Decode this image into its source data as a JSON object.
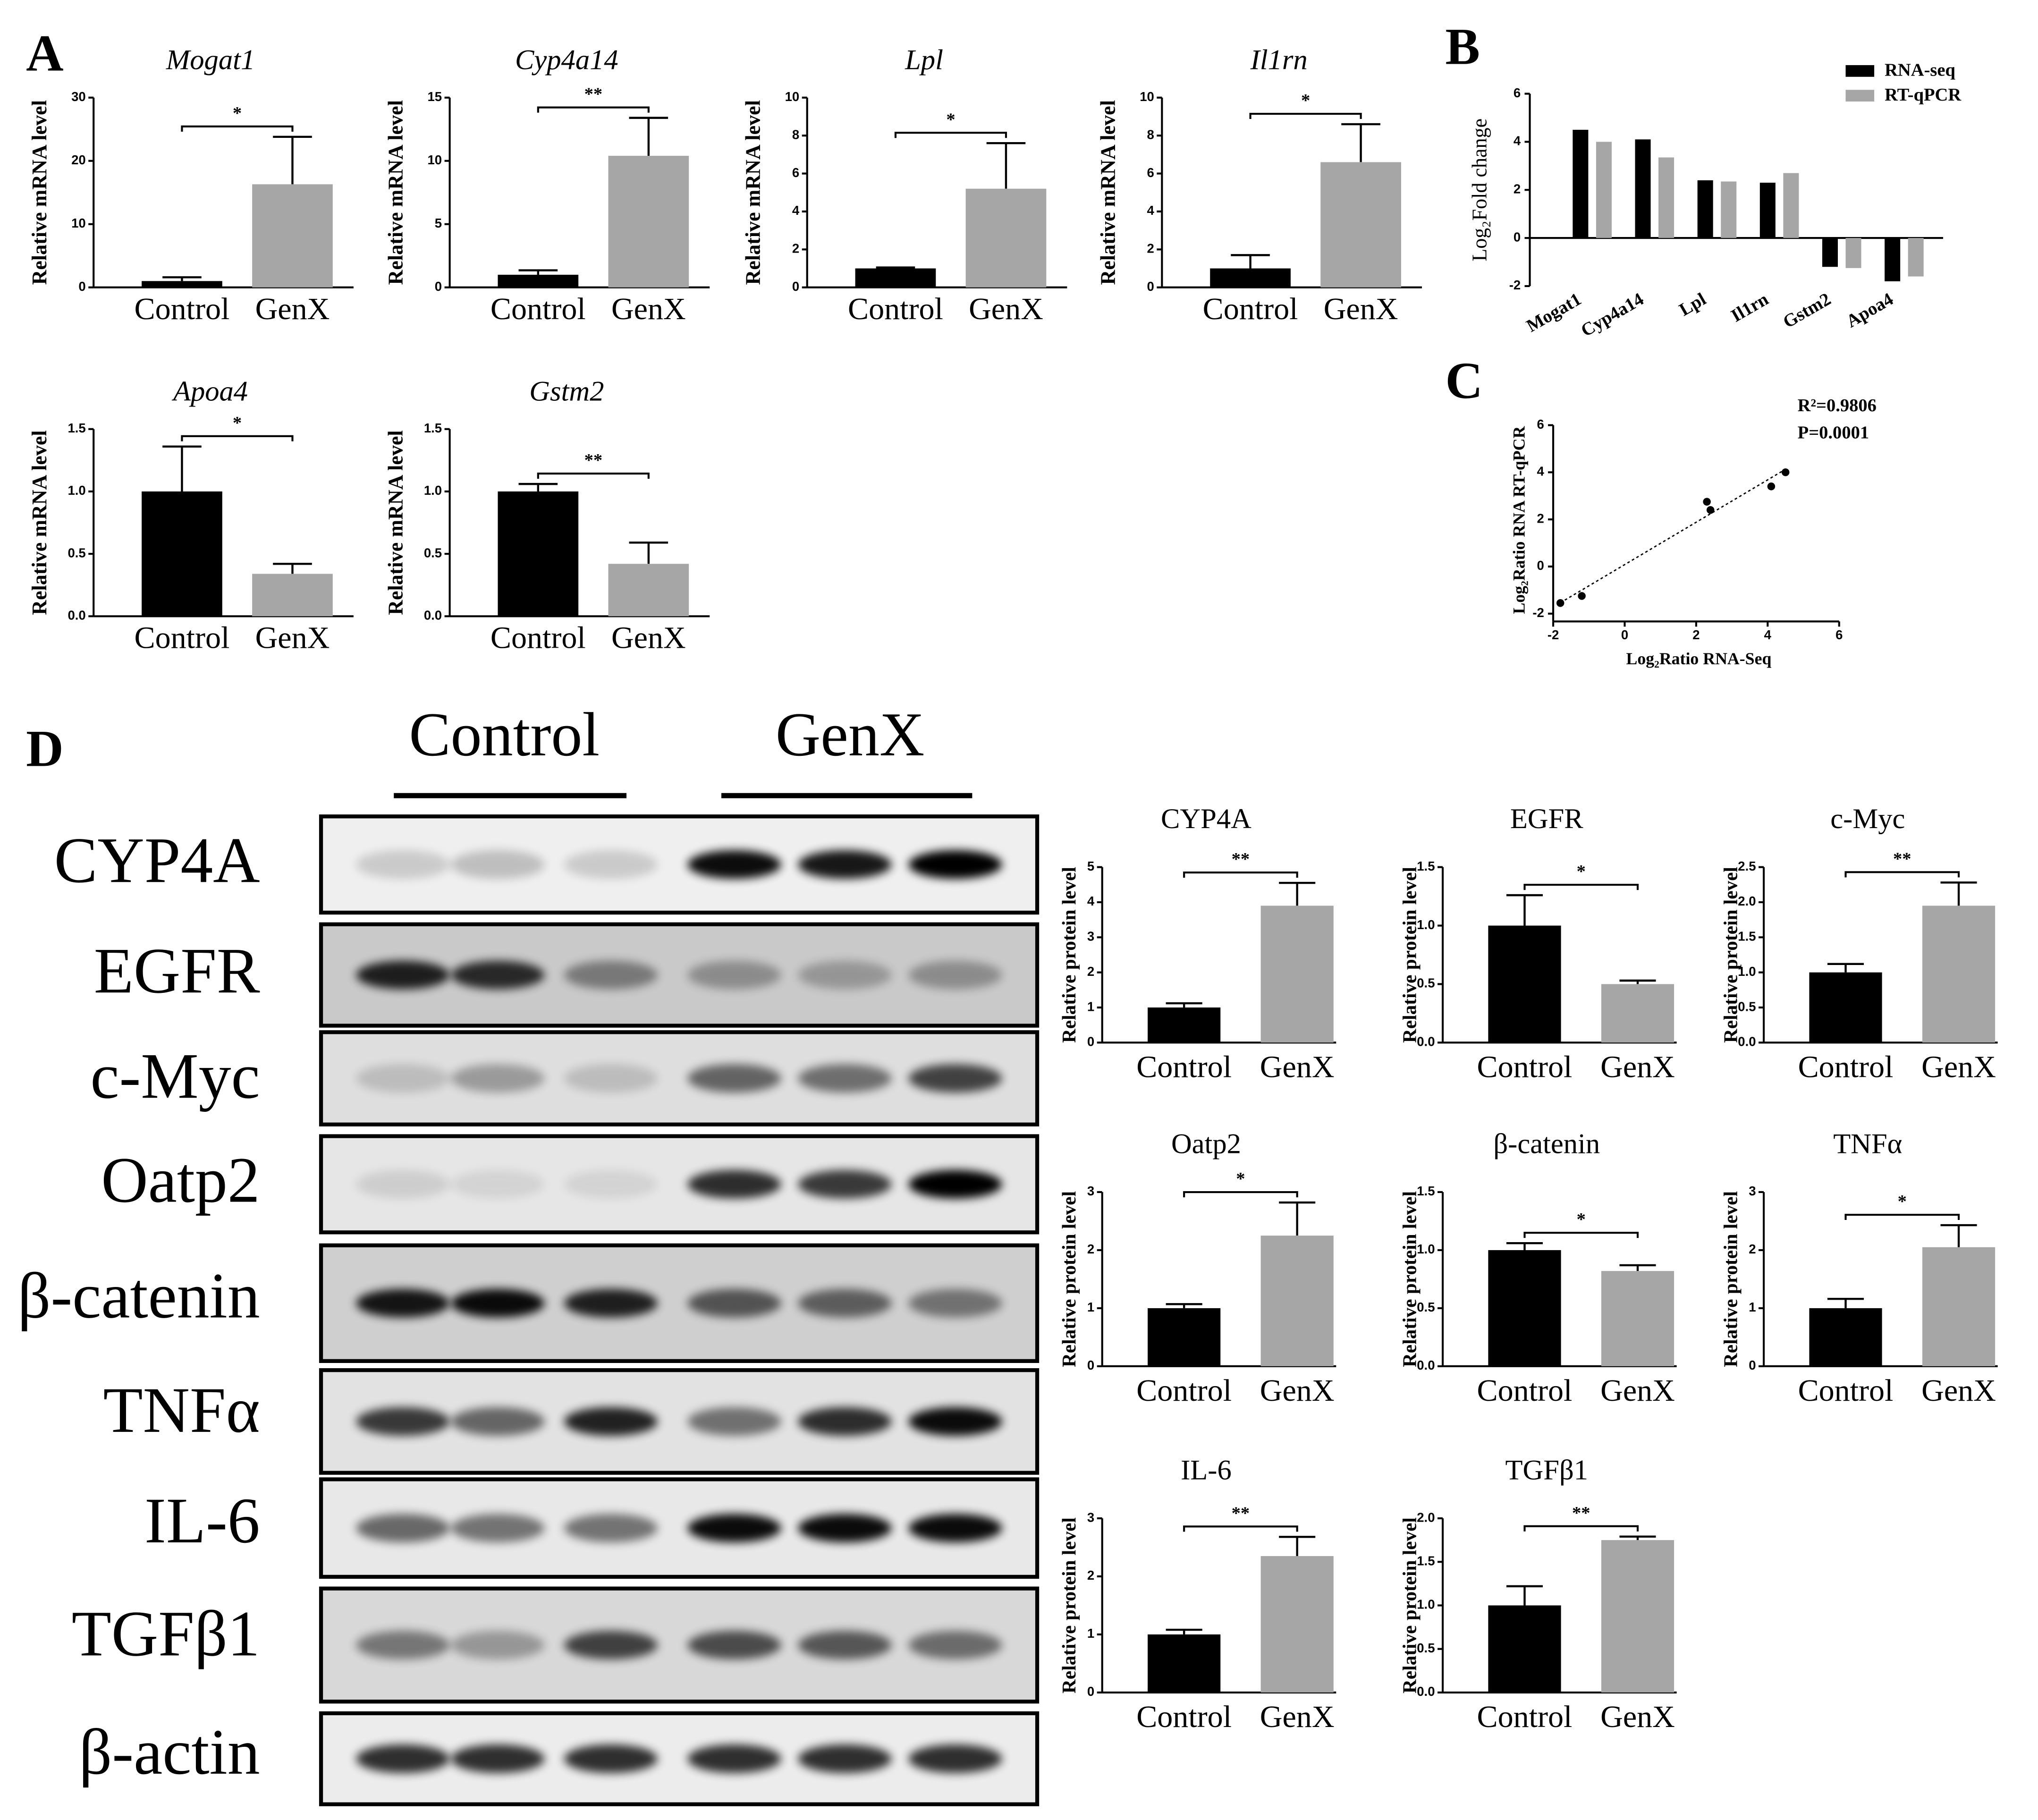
{
  "panels": [
    "A",
    "B",
    "C",
    "D"
  ],
  "blot": {
    "groups": [
      "Control",
      "GenX"
    ],
    "proteins": [
      "CYP4A",
      "EGFR",
      "c-Myc",
      "Oatp2",
      "β-catenin",
      "TNFα",
      "IL-6",
      "TGFβ1",
      "β-actin"
    ]
  },
  "chart_data": [
    {
      "type": "bar",
      "title": "Mogat1",
      "y_label": "Relative mRNA level",
      "categories": [
        "Control",
        "GenX"
      ],
      "values": [
        1,
        16.3
      ],
      "errors": [
        0.6,
        7.5
      ],
      "colors": [
        "#000000",
        "#a6a6a6"
      ],
      "ylim": [
        0,
        30
      ],
      "yticks": [
        0,
        10,
        20,
        30
      ],
      "significance": "*"
    },
    {
      "type": "bar",
      "title": "Cyp4a14",
      "y_label": "Relative mRNA level",
      "categories": [
        "Control",
        "GenX"
      ],
      "values": [
        1,
        10.4
      ],
      "errors": [
        0.35,
        3
      ],
      "colors": [
        "#000000",
        "#a6a6a6"
      ],
      "ylim": [
        0,
        15
      ],
      "yticks": [
        0,
        5,
        10,
        15
      ],
      "significance": "**"
    },
    {
      "type": "bar",
      "title": "Lpl",
      "y_label": "Relative mRNA level",
      "categories": [
        "Control",
        "GenX"
      ],
      "values": [
        1,
        5.2
      ],
      "errors": [
        0.05,
        2.4
      ],
      "colors": [
        "#000000",
        "#a6a6a6"
      ],
      "ylim": [
        0,
        10
      ],
      "yticks": [
        0,
        2,
        4,
        6,
        8,
        10
      ],
      "significance": "*"
    },
    {
      "type": "bar",
      "title": "Il1rn",
      "y_label": "Relative mRNA level",
      "categories": [
        "Control",
        "GenX"
      ],
      "values": [
        1,
        6.6
      ],
      "errors": [
        0.7,
        2
      ],
      "colors": [
        "#000000",
        "#a6a6a6"
      ],
      "ylim": [
        0,
        10
      ],
      "yticks": [
        0,
        2,
        4,
        6,
        8,
        10
      ],
      "significance": "*"
    },
    {
      "type": "bar",
      "title": "Apoa4",
      "y_label": "Relative mRNA level",
      "categories": [
        "Control",
        "GenX"
      ],
      "values": [
        1.0,
        0.34
      ],
      "errors": [
        0.36,
        0.08
      ],
      "colors": [
        "#000000",
        "#a6a6a6"
      ],
      "ylim": [
        0,
        1.5
      ],
      "yticks": [
        {
          "value": 0,
          "label": "0.0"
        },
        {
          "value": 0.5,
          "label": "0.5"
        },
        {
          "value": 1,
          "label": "1.0"
        },
        {
          "value": 1.5,
          "label": "1.5"
        }
      ],
      "significance": "*"
    },
    {
      "type": "bar",
      "title": "Gstm2",
      "y_label": "Relative mRNA level",
      "categories": [
        "Control",
        "GenX"
      ],
      "values": [
        1.0,
        0.42
      ],
      "errors": [
        0.06,
        0.17
      ],
      "colors": [
        "#000000",
        "#a6a6a6"
      ],
      "ylim": [
        0,
        1.5
      ],
      "yticks": [
        {
          "value": 0,
          "label": "0.0"
        },
        {
          "value": 0.5,
          "label": "0.5"
        },
        {
          "value": 1,
          "label": "1.0"
        },
        {
          "value": 1.5,
          "label": "1.5"
        }
      ],
      "significance": "**"
    },
    {
      "type": "grouped_bar",
      "y_label": "Log₂Fold change",
      "categories": [
        "Mogat1",
        "Cyp4a14",
        "Lpl",
        "Il1rn",
        "Gstm2",
        "Apoa4"
      ],
      "series": [
        {
          "name": "RNA-seq",
          "color": "#000000",
          "values": [
            4.5,
            4.1,
            2.4,
            2.3,
            -1.2,
            -1.8
          ]
        },
        {
          "name": "RT-qPCR",
          "color": "#a6a6a6",
          "values": [
            4.0,
            3.35,
            2.35,
            2.7,
            -1.25,
            -1.6
          ]
        }
      ],
      "ylim": [
        -2,
        6
      ],
      "yticks": [
        -2,
        0,
        2,
        4,
        6
      ],
      "legend": "upper right"
    },
    {
      "type": "scatter",
      "x_label": "Log₂Ratio RNA-Seq",
      "y_label": "Log₂Ratio RNA RT-qPCR",
      "x": [
        4.5,
        4.1,
        2.4,
        2.3,
        -1.2,
        -1.8
      ],
      "y": [
        4.0,
        3.4,
        2.4,
        2.75,
        -1.25,
        -1.55
      ],
      "color": "#000000",
      "xlim": [
        -2,
        6
      ],
      "xticks": [
        -2,
        0,
        2,
        4,
        6
      ],
      "ylim": [
        -2,
        6
      ],
      "yticks": [
        -2,
        0,
        2,
        4,
        6
      ],
      "annotations": [
        "R²=0.9806",
        "P=0.0001"
      ],
      "trendline": true
    },
    {
      "type": "bar",
      "title": "CYP4A",
      "y_label": "Relative protein level",
      "categories": [
        "Control",
        "GenX"
      ],
      "values": [
        1.0,
        3.9
      ],
      "errors": [
        0.12,
        0.65
      ],
      "colors": [
        "#000000",
        "#a6a6a6"
      ],
      "ylim": [
        0,
        5
      ],
      "yticks": [
        0,
        1,
        2,
        3,
        4,
        5
      ],
      "significance": "**"
    },
    {
      "type": "bar",
      "title": "EGFR",
      "y_label": "Relative protein level",
      "categories": [
        "Control",
        "GenX"
      ],
      "values": [
        1.0,
        0.5
      ],
      "errors": [
        0.26,
        0.03
      ],
      "colors": [
        "#000000",
        "#a6a6a6"
      ],
      "ylim": [
        0,
        1.5
      ],
      "yticks": [
        {
          "value": 0,
          "label": "0.0"
        },
        {
          "value": 0.5,
          "label": "0.5"
        },
        {
          "value": 1,
          "label": "1.0"
        },
        {
          "value": 1.5,
          "label": "1.5"
        }
      ],
      "significance": "*"
    },
    {
      "type": "bar",
      "title": "c-Myc",
      "y_label": "Relative protein level",
      "categories": [
        "Control",
        "GenX"
      ],
      "values": [
        1.0,
        1.95
      ],
      "errors": [
        0.12,
        0.33
      ],
      "colors": [
        "#000000",
        "#a6a6a6"
      ],
      "ylim": [
        0,
        2.5
      ],
      "yticks": [
        {
          "value": 0,
          "label": "0.0"
        },
        {
          "value": 0.5,
          "label": "0.5"
        },
        {
          "value": 1,
          "label": "1.0"
        },
        {
          "value": 1.5,
          "label": "1.5"
        },
        {
          "value": 2,
          "label": "2.0"
        },
        {
          "value": 2.5,
          "label": "2.5"
        }
      ],
      "significance": "**"
    },
    {
      "type": "bar",
      "title": "Oatp2",
      "y_label": "Relative protein level",
      "categories": [
        "Control",
        "GenX"
      ],
      "values": [
        1.0,
        2.25
      ],
      "errors": [
        0.07,
        0.57
      ],
      "colors": [
        "#000000",
        "#a6a6a6"
      ],
      "ylim": [
        0,
        3
      ],
      "yticks": [
        0,
        1,
        2,
        3
      ],
      "significance": "*"
    },
    {
      "type": "bar",
      "title": "β-catenin",
      "y_label": "Relative protein level",
      "categories": [
        "Control",
        "GenX"
      ],
      "values": [
        1.0,
        0.82
      ],
      "errors": [
        0.06,
        0.05
      ],
      "colors": [
        "#000000",
        "#a6a6a6"
      ],
      "ylim": [
        0,
        1.5
      ],
      "yticks": [
        {
          "value": 0,
          "label": "0.0"
        },
        {
          "value": 0.5,
          "label": "0.5"
        },
        {
          "value": 1,
          "label": "1.0"
        },
        {
          "value": 1.5,
          "label": "1.5"
        }
      ],
      "significance": "*"
    },
    {
      "type": "bar",
      "title": "TNFα",
      "y_label": "Relative protein level",
      "categories": [
        "Control",
        "GenX"
      ],
      "values": [
        1.0,
        2.05
      ],
      "errors": [
        0.16,
        0.38
      ],
      "colors": [
        "#000000",
        "#a6a6a6"
      ],
      "ylim": [
        0,
        3
      ],
      "yticks": [
        0,
        1,
        2,
        3
      ],
      "significance": "*"
    },
    {
      "type": "bar",
      "title": "IL-6",
      "y_label": "Relative protein level",
      "categories": [
        "Control",
        "GenX"
      ],
      "values": [
        1.0,
        2.35
      ],
      "errors": [
        0.08,
        0.33
      ],
      "colors": [
        "#000000",
        "#a6a6a6"
      ],
      "ylim": [
        0,
        3
      ],
      "yticks": [
        0,
        1,
        2,
        3
      ],
      "significance": "**"
    },
    {
      "type": "bar",
      "title": "TGFβ1",
      "y_label": "Relative protein level",
      "categories": [
        "Control",
        "GenX"
      ],
      "values": [
        1.0,
        1.75
      ],
      "errors": [
        0.22,
        0.04
      ],
      "colors": [
        "#000000",
        "#a6a6a6"
      ],
      "ylim": [
        0,
        2
      ],
      "yticks": [
        {
          "value": 0,
          "label": "0.0"
        },
        {
          "value": 0.5,
          "label": "0.5"
        },
        {
          "value": 1,
          "label": "1.0"
        },
        {
          "value": 1.5,
          "label": "1.5"
        },
        {
          "value": 2,
          "label": "2.0"
        }
      ],
      "significance": "**"
    }
  ]
}
